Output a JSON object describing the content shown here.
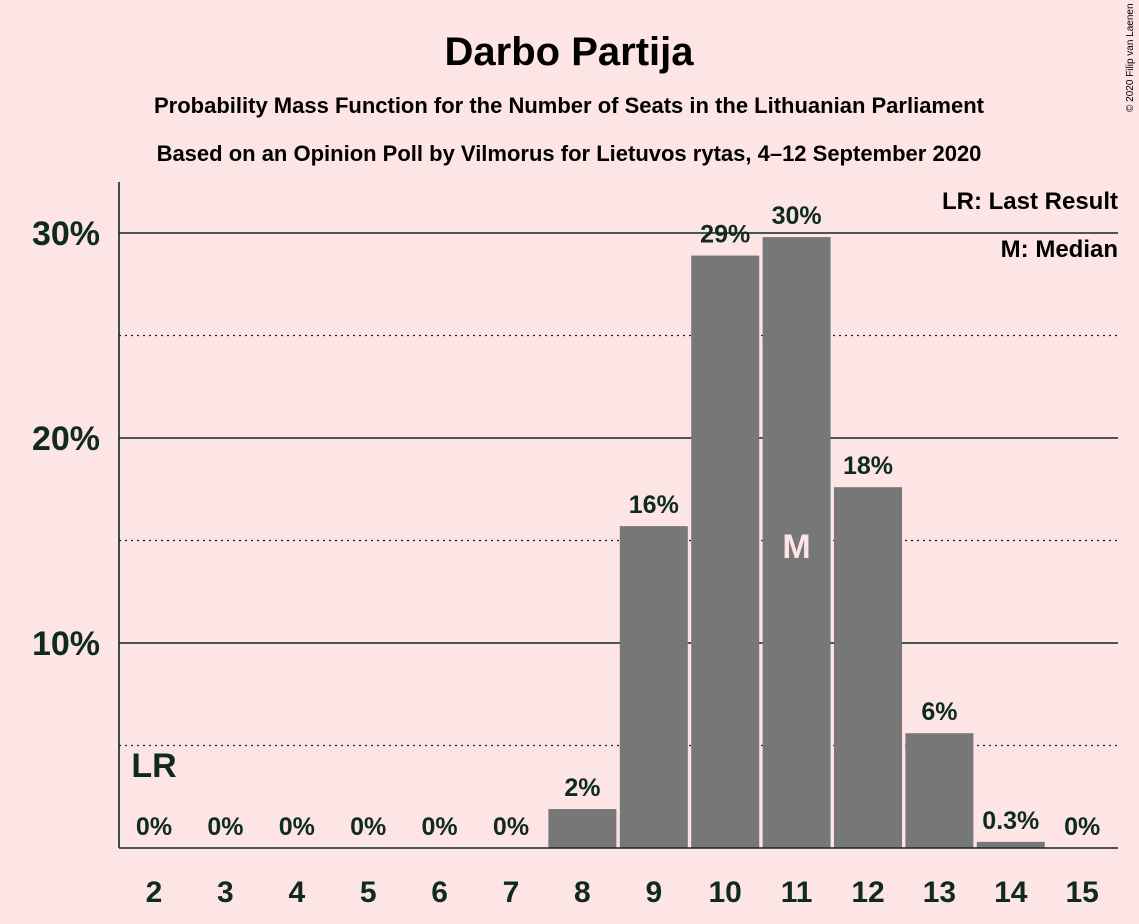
{
  "chart_data": {
    "type": "bar",
    "title": "Darbo Partija",
    "subtitle_1": "Probability Mass Function for the Number of Seats in the Lithuanian Parliament",
    "subtitle_2": "Based on an Opinion Poll by Vilmorus for Lietuvos rytas, 4–12 September 2020",
    "categories": [
      "2",
      "3",
      "4",
      "5",
      "6",
      "7",
      "8",
      "9",
      "10",
      "11",
      "12",
      "13",
      "14",
      "15"
    ],
    "values": [
      0,
      0,
      0,
      0,
      0,
      0,
      1.9,
      15.7,
      28.9,
      29.8,
      17.6,
      5.6,
      0.3,
      0
    ],
    "data_labels": [
      "0%",
      "0%",
      "0%",
      "0%",
      "0%",
      "0%",
      "2%",
      "16%",
      "29%",
      "30%",
      "18%",
      "6%",
      "0.3%",
      "0%"
    ],
    "ylim": [
      0,
      32.5
    ],
    "yticks": [
      {
        "value": 10,
        "label": "10%"
      },
      {
        "value": 20,
        "label": "20%"
      },
      {
        "value": 30,
        "label": "30%"
      }
    ],
    "minor_gridlines": [
      5,
      15,
      25
    ],
    "grid": true,
    "bar_color": "#777777",
    "background_color": "#FDE5E5",
    "text_color": "#0F2A1E",
    "last_result": {
      "category": "2",
      "marker": "LR"
    },
    "median": {
      "category": "11",
      "marker": "M"
    },
    "legend": {
      "position": "top-right",
      "entries": [
        "LR: Last Result",
        "M: Median"
      ]
    },
    "copyright": "© 2020 Filip van Laenen"
  }
}
